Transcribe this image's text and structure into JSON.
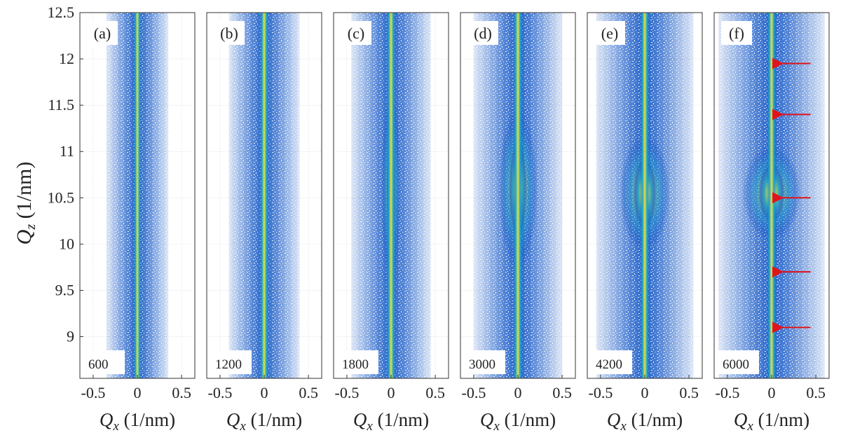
{
  "figure": {
    "ylabel_symbol": "Q",
    "ylabel_sub": "z",
    "ylabel_unit": " (1/nm)",
    "xlabel_symbol": "Q",
    "xlabel_sub": "x",
    "xlabel_unit": " (1/nm)"
  },
  "colors": {
    "low": "#1a5cc8",
    "mid": "#1fa7c9",
    "high": "#f2e23a",
    "peak": "#f5b21e",
    "arrow": "#e0141c",
    "background": "#ffffff"
  },
  "chart_data": {
    "type": "heatmap",
    "x_range": [
      -0.65,
      0.65
    ],
    "y_range": [
      8.55,
      12.5
    ],
    "x_ticks": [
      -0.5,
      0,
      0.5
    ],
    "x_tick_labels": [
      "-0.5",
      "0",
      "0.5"
    ],
    "y_ticks": [
      9,
      9.5,
      10,
      10.5,
      11,
      11.5,
      12,
      12.5
    ],
    "y_tick_labels": [
      "9",
      "9.5",
      "10",
      "10.5",
      "11",
      "11.5",
      "12",
      "12.5"
    ],
    "grid": true,
    "panels": [
      {
        "label": "(a)",
        "value_label": "600",
        "core_width": 0.05,
        "bulge_width": 0.0,
        "bulge_center": 10.6,
        "bulge_height": 0.0,
        "arrows_qz": []
      },
      {
        "label": "(b)",
        "value_label": "1200",
        "core_width": 0.06,
        "bulge_width": 0.0,
        "bulge_center": 10.6,
        "bulge_height": 0.0,
        "arrows_qz": []
      },
      {
        "label": "(c)",
        "value_label": "1800",
        "core_width": 0.06,
        "bulge_width": 0.05,
        "bulge_center": 10.6,
        "bulge_height": 1.3,
        "arrows_qz": []
      },
      {
        "label": "(d)",
        "value_label": "3000",
        "core_width": 0.06,
        "bulge_width": 0.1,
        "bulge_center": 10.6,
        "bulge_height": 1.1,
        "arrows_qz": []
      },
      {
        "label": "(e)",
        "value_label": "4200",
        "core_width": 0.06,
        "bulge_width": 0.13,
        "bulge_center": 10.55,
        "bulge_height": 0.8,
        "arrows_qz": []
      },
      {
        "label": "(f)",
        "value_label": "6000",
        "core_width": 0.06,
        "bulge_width": 0.15,
        "bulge_center": 10.55,
        "bulge_height": 0.65,
        "arrows_qz": [
          11.95,
          11.4,
          10.5,
          9.7,
          9.1
        ]
      }
    ]
  }
}
